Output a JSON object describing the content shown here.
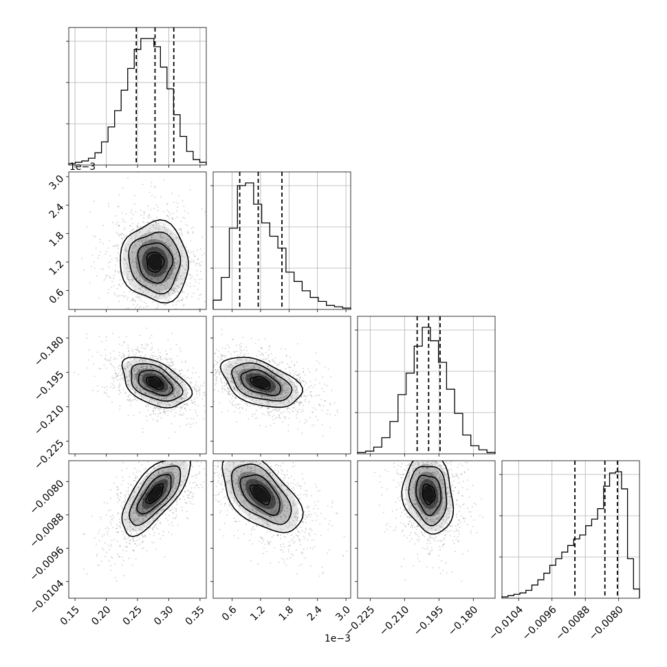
{
  "chart_data": {
    "type": "corner",
    "parameters": [
      {
        "range": [
          0.14,
          0.36
        ],
        "ticks": [
          0.15,
          0.2,
          0.25,
          0.3,
          0.35
        ],
        "tick_labels": [
          "0.15",
          "0.20",
          "0.25",
          "0.30",
          "0.35"
        ],
        "quantiles": [
          0.248,
          0.278,
          0.308
        ],
        "mean": 0.278,
        "sd": 0.026
      },
      {
        "range": [
          0.0002,
          0.0031
        ],
        "ticks": [
          0.0006,
          0.0012,
          0.0018,
          0.0024,
          0.003
        ],
        "tick_labels": [
          "0.6",
          "1.2",
          "1.8",
          "2.4",
          "3.0"
        ],
        "offset_label": "1e−3",
        "quantiles": [
          0.00076,
          0.00115,
          0.00165
        ],
        "mean": 0.0012,
        "sd": 0.0004
      },
      {
        "range": [
          -0.2305,
          -0.1705
        ],
        "ticks": [
          -0.225,
          -0.21,
          -0.195,
          -0.18
        ],
        "tick_labels": [
          "−0.225",
          "−0.210",
          "−0.195",
          "−0.180"
        ],
        "quantiles": [
          -0.2045,
          -0.1995,
          -0.1945
        ],
        "mean": -0.1995,
        "sd": 0.0052
      },
      {
        "range": [
          -0.0108,
          -0.0075
        ],
        "ticks": [
          -0.0104,
          -0.0096,
          -0.0088,
          -0.008
        ],
        "tick_labels": [
          "−0.0104",
          "−0.0096",
          "−0.0088",
          "−0.0080"
        ],
        "quantiles": [
          -0.00905,
          -0.00833,
          -0.00803
        ],
        "mean": -0.0083,
        "sd": 0.00045
      }
    ],
    "histograms": [
      [
        1,
        2,
        3,
        5,
        9,
        17,
        28,
        40,
        55,
        71,
        85,
        93,
        93,
        87,
        72,
        56,
        37,
        21,
        10,
        4,
        2
      ],
      [
        7,
        24,
        61,
        93,
        95,
        79,
        65,
        55,
        46,
        28,
        21,
        14,
        9,
        6,
        3,
        2,
        1
      ],
      [
        1,
        2,
        5,
        12,
        24,
        44,
        60,
        80,
        94,
        84,
        68,
        48,
        30,
        14,
        6,
        3,
        1
      ],
      [
        1,
        2,
        3,
        4,
        6,
        10,
        14,
        19,
        25,
        30,
        35,
        40,
        45,
        48,
        55,
        60,
        68,
        85,
        95,
        96,
        83,
        30,
        7
      ]
    ],
    "pairs": [
      {
        "i": 1,
        "j": 0,
        "rho": -0.05
      },
      {
        "i": 2,
        "j": 0,
        "rho": -0.45
      },
      {
        "i": 2,
        "j": 1,
        "rho": -0.45
      },
      {
        "i": 3,
        "j": 0,
        "rho": 0.7
      },
      {
        "i": 3,
        "j": 1,
        "rho": -0.55
      },
      {
        "i": 3,
        "j": 2,
        "rho": -0.15
      }
    ],
    "grid": true
  },
  "colors": {
    "line": "#000000",
    "grid": "#b0b0b0",
    "points": "#000000"
  }
}
